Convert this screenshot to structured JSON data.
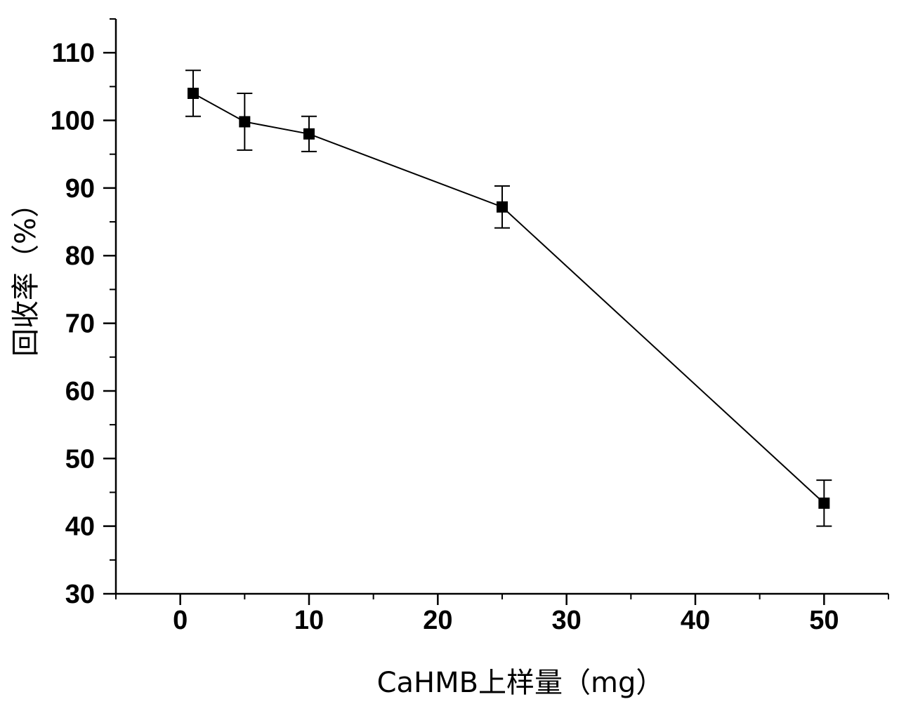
{
  "chart_data": {
    "type": "line",
    "title": "",
    "xlabel": "CaHMB上样量（mg）",
    "ylabel": "回收率（%）",
    "xlim": [
      -5,
      55
    ],
    "ylim": [
      30,
      115
    ],
    "x_ticks": [
      0,
      10,
      20,
      30,
      40,
      50
    ],
    "y_ticks": [
      30,
      40,
      50,
      60,
      70,
      80,
      90,
      100,
      110
    ],
    "grid": false,
    "legend": "none",
    "marker": "square",
    "error_bars": true,
    "series": [
      {
        "color": "#000000",
        "points": [
          {
            "x": 1,
            "y": 104.0,
            "err_low": 100.6,
            "err_high": 107.4
          },
          {
            "x": 5,
            "y": 99.8,
            "err_low": 95.6,
            "err_high": 104.0
          },
          {
            "x": 10,
            "y": 98.0,
            "err_low": 95.4,
            "err_high": 100.6
          },
          {
            "x": 25,
            "y": 87.2,
            "err_low": 84.1,
            "err_high": 90.3
          },
          {
            "x": 50,
            "y": 43.4,
            "err_low": 40.0,
            "err_high": 46.8
          }
        ]
      }
    ]
  }
}
